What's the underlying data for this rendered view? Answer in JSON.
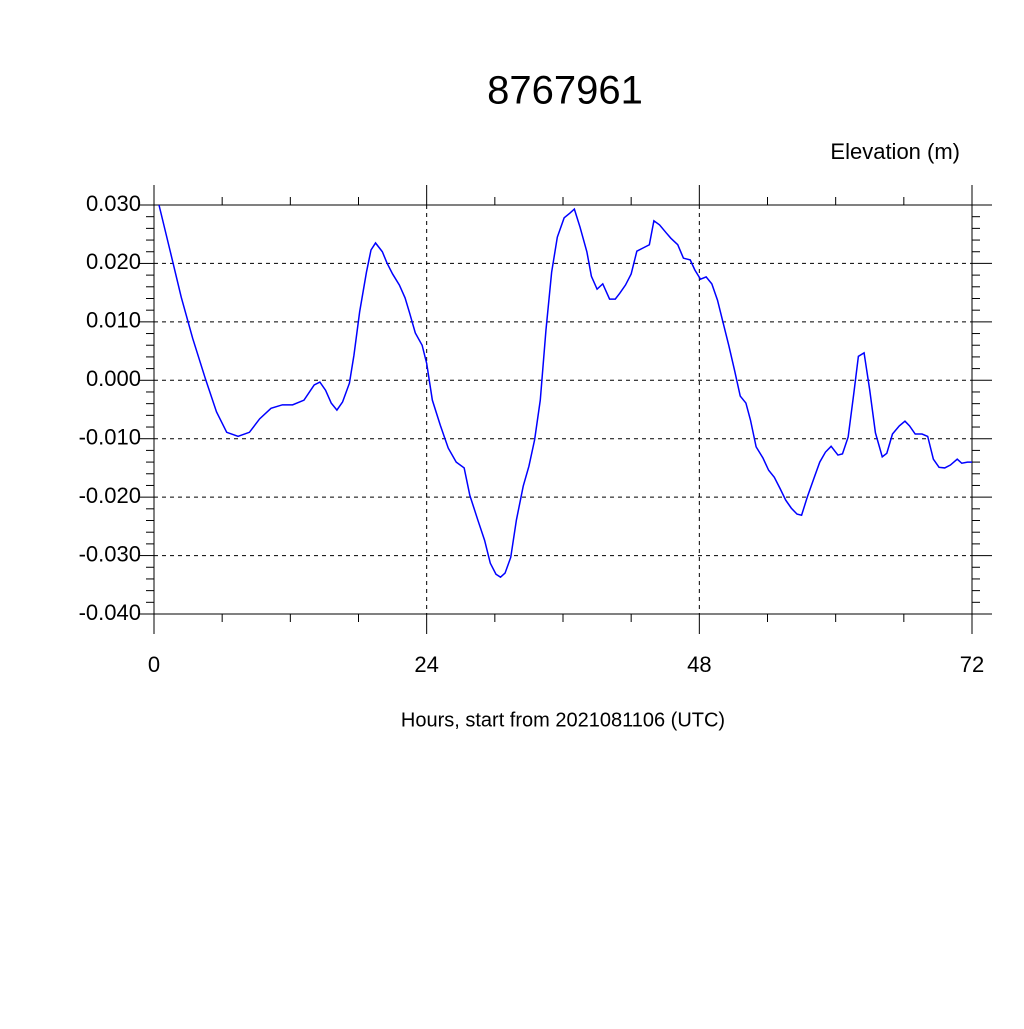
{
  "chart_data": {
    "type": "line",
    "title": "8767961",
    "y_label": "Elevation (m)",
    "x_label": "Hours, start from 2021081106 (UTC)",
    "xlim": [
      0,
      72
    ],
    "ylim": [
      -0.04,
      0.03
    ],
    "xticks": [
      0,
      24,
      48,
      72
    ],
    "yticks": [
      {
        "value": -0.04,
        "label": "-0.040"
      },
      {
        "value": -0.03,
        "label": "-0.030"
      },
      {
        "value": -0.02,
        "label": "-0.020"
      },
      {
        "value": -0.01,
        "label": "-0.010"
      },
      {
        "value": 0,
        "label": "0.000"
      },
      {
        "value": 0.01,
        "label": "0.010"
      },
      {
        "value": 0.02,
        "label": "0.020"
      },
      {
        "value": 0.03,
        "label": "0.030"
      }
    ],
    "grid": true,
    "x": [
      0.44,
      1.4,
      2.4,
      3.4,
      4.5,
      5.5,
      6.4,
      7.4,
      8.4,
      9.3,
      10.3,
      11.3,
      12.2,
      13.2,
      14.1,
      14.6,
      15.1,
      15.6,
      16.1,
      16.6,
      17.2,
      17.6,
      18.1,
      18.7,
      19.1,
      19.5,
      20.1,
      20.5,
      21.0,
      21.6,
      22.1,
      22.5,
      23.0,
      23.6,
      24.0,
      24.5,
      25.2,
      25.9,
      26.6,
      27.3,
      27.8,
      28.5,
      29.1,
      29.6,
      30.1,
      30.5,
      30.9,
      31.4,
      31.9,
      32.5,
      33.0,
      33.5,
      34.0,
      34.5,
      35.0,
      35.5,
      36.1,
      36.6,
      37.0,
      37.5,
      38.1,
      38.5,
      39.0,
      39.5,
      40.1,
      40.6,
      41.0,
      41.5,
      42.0,
      42.5,
      43.0,
      43.6,
      44.0,
      44.5,
      45.1,
      45.5,
      46.1,
      46.6,
      47.2,
      47.6,
      48.1,
      48.6,
      49.1,
      49.6,
      50.1,
      50.6,
      51.1,
      51.6,
      52.1,
      52.5,
      53.0,
      53.6,
      54.1,
      54.6,
      55.1,
      55.6,
      56.1,
      56.6,
      57.0,
      57.5,
      58.1,
      58.6,
      59.1,
      59.6,
      60.2,
      60.6,
      61.1,
      61.6,
      62.0,
      62.5,
      63.0,
      63.5,
      64.1,
      64.5,
      65.0,
      65.6,
      66.1,
      66.5,
      67.0,
      67.6,
      68.1,
      68.6,
      69.1,
      69.6,
      70.1,
      70.7,
      71.1,
      71.6,
      72.0
    ],
    "series": [
      {
        "color": "#0000ff",
        "values": [
          0.03,
          0.0223,
          0.0142,
          0.0072,
          0.0004,
          -0.0054,
          -0.0089,
          -0.0096,
          -0.0089,
          -0.0066,
          -0.0048,
          -0.0042,
          -0.0042,
          -0.0034,
          -0.0008,
          -0.0003,
          -0.0017,
          -0.0039,
          -0.0051,
          -0.0037,
          -0.0005,
          0.0043,
          0.0117,
          0.0185,
          0.0223,
          0.0235,
          0.022,
          0.0201,
          0.0182,
          0.0163,
          0.0141,
          0.0115,
          0.0081,
          0.006,
          0.0029,
          -0.0034,
          -0.0077,
          -0.0116,
          -0.014,
          -0.015,
          -0.0197,
          -0.0239,
          -0.0274,
          -0.0313,
          -0.0332,
          -0.0337,
          -0.033,
          -0.0303,
          -0.0239,
          -0.0181,
          -0.0147,
          -0.0102,
          -0.0034,
          0.0086,
          0.0185,
          0.0245,
          0.0278,
          0.0286,
          0.0293,
          0.0262,
          0.022,
          0.0178,
          0.0156,
          0.0165,
          0.0139,
          0.0139,
          0.0149,
          0.0163,
          0.0182,
          0.0221,
          0.0226,
          0.0232,
          0.0273,
          0.0266,
          0.0252,
          0.0243,
          0.0232,
          0.0209,
          0.0206,
          0.0189,
          0.0173,
          0.0177,
          0.0165,
          0.0137,
          0.0098,
          0.0059,
          0.0017,
          -0.0027,
          -0.0039,
          -0.0068,
          -0.0114,
          -0.0133,
          -0.0154,
          -0.0166,
          -0.0185,
          -0.0205,
          -0.0219,
          -0.0229,
          -0.0231,
          -0.02,
          -0.0167,
          -0.014,
          -0.0123,
          -0.0113,
          -0.0128,
          -0.0126,
          -0.0097,
          -0.0022,
          0.0041,
          0.0047,
          -0.0017,
          -0.009,
          -0.0131,
          -0.0125,
          -0.0092,
          -0.0078,
          -0.007,
          -0.0078,
          -0.0092,
          -0.0092,
          -0.0096,
          -0.0135,
          -0.0149,
          -0.015,
          -0.0145,
          -0.0135,
          -0.0142,
          -0.014,
          -0.014
        ]
      }
    ]
  }
}
